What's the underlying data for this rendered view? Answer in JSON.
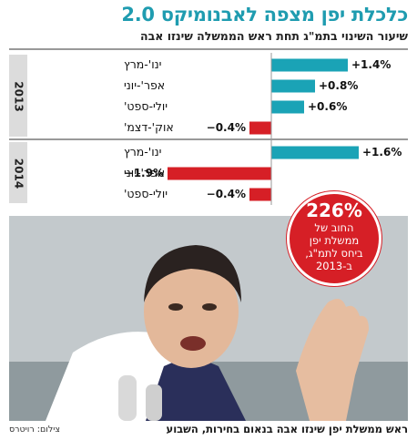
{
  "header": {
    "title": "כלכלת יפן מצפה לאבנומיקס 2.0",
    "subtitle": "שיעור השינוי בתמ\"ג תחת ראש הממשלה שינזו אבה"
  },
  "chart_data": {
    "type": "bar",
    "orientation": "horizontal",
    "groups": [
      {
        "year": "2013",
        "items": [
          {
            "label": "ינו'-מרץ",
            "value": 1.4,
            "display": "+1.4%"
          },
          {
            "label": "אפר'-יוני",
            "value": 0.8,
            "display": "+0.8%"
          },
          {
            "label": "יולי-ספט'",
            "value": 0.6,
            "display": "+0.6%"
          },
          {
            "label": "אוק'-דצמ'",
            "value": -0.4,
            "display": "−0.4%"
          }
        ]
      },
      {
        "year": "2014",
        "items": [
          {
            "label": "ינו'-מרץ",
            "value": 1.6,
            "display": "+1.6%"
          },
          {
            "label": "אפר'-יוני",
            "value": -1.9,
            "display": "−1.9%"
          },
          {
            "label": "יולי-ספט'",
            "value": -0.4,
            "display": "−0.4%"
          }
        ]
      }
    ],
    "colors": {
      "positive": "#1aa3b6",
      "negative": "#d61f26",
      "year_band": "#dcdcdc"
    }
  },
  "callout": {
    "value": "226%",
    "text": "החוב של\nממשלת יפן\nביחס לתמ\"ג,\nב-2013"
  },
  "photo": {
    "caption": "ראש ממשלת יפן שינזו אבה בנאום בחירות, השבוע",
    "credit": "צילום: רויטרס"
  }
}
